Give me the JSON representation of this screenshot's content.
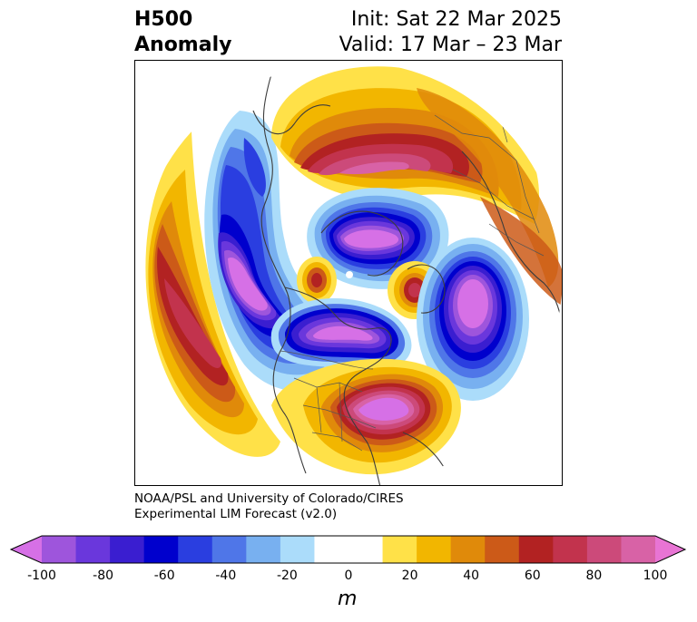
{
  "header": {
    "title_line1": "H500",
    "title_line2": "Anomaly",
    "init_label": "Init: Sat 22 Mar 2025",
    "valid_label": "Valid: 17 Mar – 23 Mar"
  },
  "map": {
    "projection": "north-polar-stereographic",
    "field": "500 hPa geopotential height anomaly",
    "features": [
      "continent-outlines",
      "country-borders",
      "state-borders"
    ],
    "anomaly_centers": [
      {
        "name": "north-pacific-ridge",
        "sign": "positive",
        "peak_m": 70
      },
      {
        "name": "west-canada-trough",
        "sign": "negative",
        "peak_m": -100
      },
      {
        "name": "arctic-trough",
        "sign": "negative",
        "peak_m": -100
      },
      {
        "name": "hudson-bay-trough",
        "sign": "negative",
        "peak_m": -100
      },
      {
        "name": "eastern-us-ridge",
        "sign": "positive",
        "peak_m": 100
      },
      {
        "name": "siberia-ridge",
        "sign": "positive",
        "peak_m": 90
      },
      {
        "name": "north-atlantic-trough",
        "sign": "negative",
        "peak_m": -100
      },
      {
        "name": "greenland-ridge",
        "sign": "positive",
        "peak_m": 70
      },
      {
        "name": "beaufort-ridge",
        "sign": "positive",
        "peak_m": 60
      }
    ]
  },
  "credit": {
    "line1": "NOAA/PSL and University of Colorado/CIRES",
    "line2": "Experimental LIM Forecast (v2.0)"
  },
  "colorbar": {
    "units": "m",
    "extend": "both",
    "ticks": [
      "-100",
      "-80",
      "-60",
      "-40",
      "-20",
      "0",
      "20",
      "40",
      "60",
      "80",
      "100"
    ],
    "colors": [
      "#d670e6",
      "#9e55dc",
      "#6a37dc",
      "#3a1ed0",
      "#0000cd",
      "#2a3ee0",
      "#4f76e8",
      "#78b0f0",
      "#abdcfa",
      "#ffffff",
      "#ffffff",
      "#ffe148",
      "#f2b600",
      "#e08a0a",
      "#cc5a18",
      "#b22222",
      "#c2334d",
      "#cc4a7a",
      "#d862a6",
      "#e874d4"
    ]
  }
}
